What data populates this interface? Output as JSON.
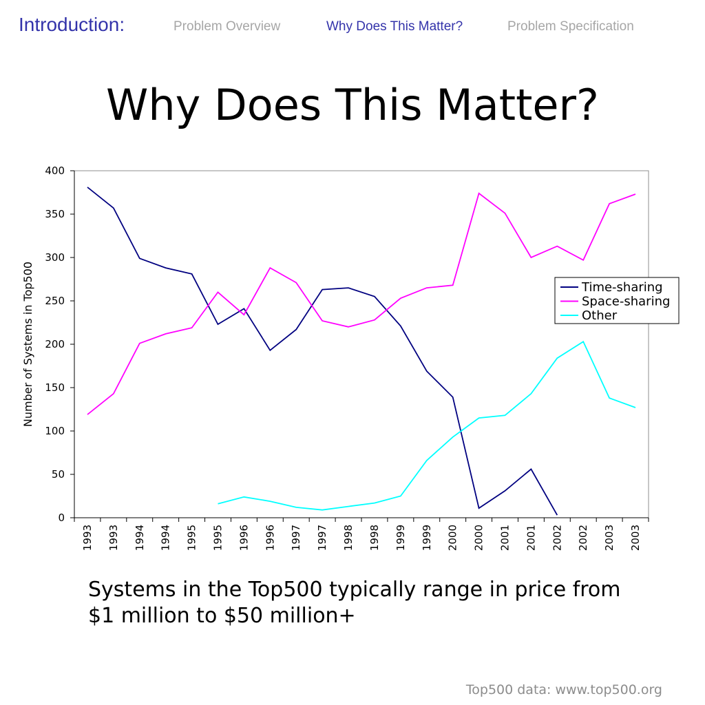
{
  "nav": {
    "section_title": "Introduction:",
    "items": [
      {
        "label": "Problem Overview",
        "active": false
      },
      {
        "label": "Why Does This Matter?",
        "active": true
      },
      {
        "label": "Problem Specification",
        "active": false
      }
    ]
  },
  "slide": {
    "title": "Why Does This Matter?",
    "caption_line1": "Systems in the Top500 typically range in price from",
    "caption_line2": "$1 million to $50 million+",
    "footer": "Top500 data: www.top500.org"
  },
  "colors": {
    "accent": "#3333aa",
    "nav_inactive": "#a6a6a6",
    "time_sharing": "#000080",
    "space_sharing": "#ff00ff",
    "other": "#00ffff"
  },
  "chart_data": {
    "type": "line",
    "title": "",
    "xlabel": "",
    "ylabel": "Number of Systems in Top500",
    "ylim": [
      0,
      400
    ],
    "yticks": [
      0,
      50,
      100,
      150,
      200,
      250,
      300,
      350,
      400
    ],
    "categories": [
      "1993",
      "1993",
      "1994",
      "1994",
      "1995",
      "1995",
      "1996",
      "1996",
      "1997",
      "1997",
      "1998",
      "1998",
      "1999",
      "1999",
      "2000",
      "2000",
      "2001",
      "2001",
      "2002",
      "2002",
      "2003",
      "2003"
    ],
    "legend_position": "right",
    "grid": false,
    "series": [
      {
        "name": "Time-sharing",
        "color": "#000080",
        "values": [
          381,
          357,
          299,
          288,
          281,
          223,
          241,
          193,
          217,
          263,
          265,
          255,
          221,
          169,
          139,
          11,
          31,
          56,
          3,
          null,
          null,
          null
        ]
      },
      {
        "name": "Space-sharing",
        "color": "#ff00ff",
        "values": [
          119,
          143,
          201,
          212,
          219,
          260,
          234,
          288,
          271,
          227,
          220,
          228,
          253,
          265,
          268,
          374,
          351,
          300,
          313,
          297,
          362,
          373
        ]
      },
      {
        "name": "Other",
        "color": "#00ffff",
        "values": [
          null,
          null,
          null,
          null,
          null,
          16,
          24,
          19,
          12,
          9,
          13,
          17,
          25,
          66,
          93,
          115,
          118,
          143,
          184,
          203,
          138,
          127
        ]
      }
    ]
  }
}
